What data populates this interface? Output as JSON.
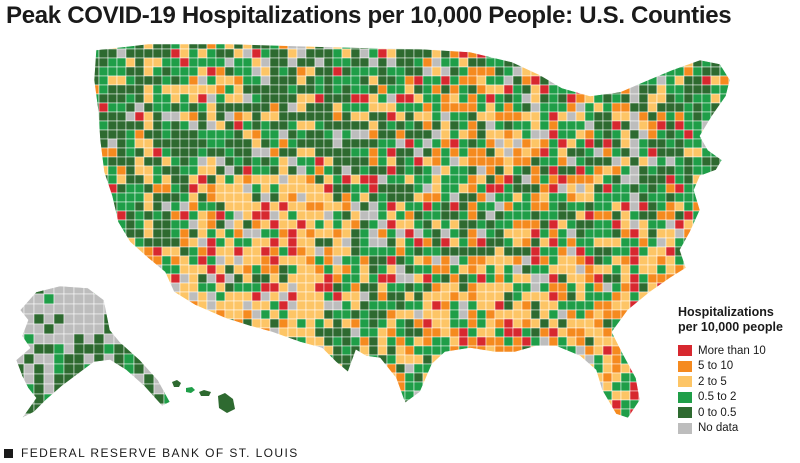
{
  "title": "Peak COVID-19 Hospitalizations per 10,000 People: U.S. Counties",
  "legend": {
    "title_line1": "Hospitalizations",
    "title_line2": "per 10,000 people",
    "items": [
      {
        "label": "More than 10",
        "color": "#d7282f"
      },
      {
        "label": "5 to 10",
        "color": "#f58a1f"
      },
      {
        "label": "2 to 5",
        "color": "#fdc566"
      },
      {
        "label": "0.5 to 2",
        "color": "#1f9e48"
      },
      {
        "label": "0 to 0.5",
        "color": "#2e6a30"
      },
      {
        "label": "No data",
        "color": "#bdbdbd"
      }
    ]
  },
  "footer": "FEDERAL RESERVE BANK OF ST. LOUIS",
  "regions": [
    "conus",
    "alaska",
    "hawaii"
  ]
}
